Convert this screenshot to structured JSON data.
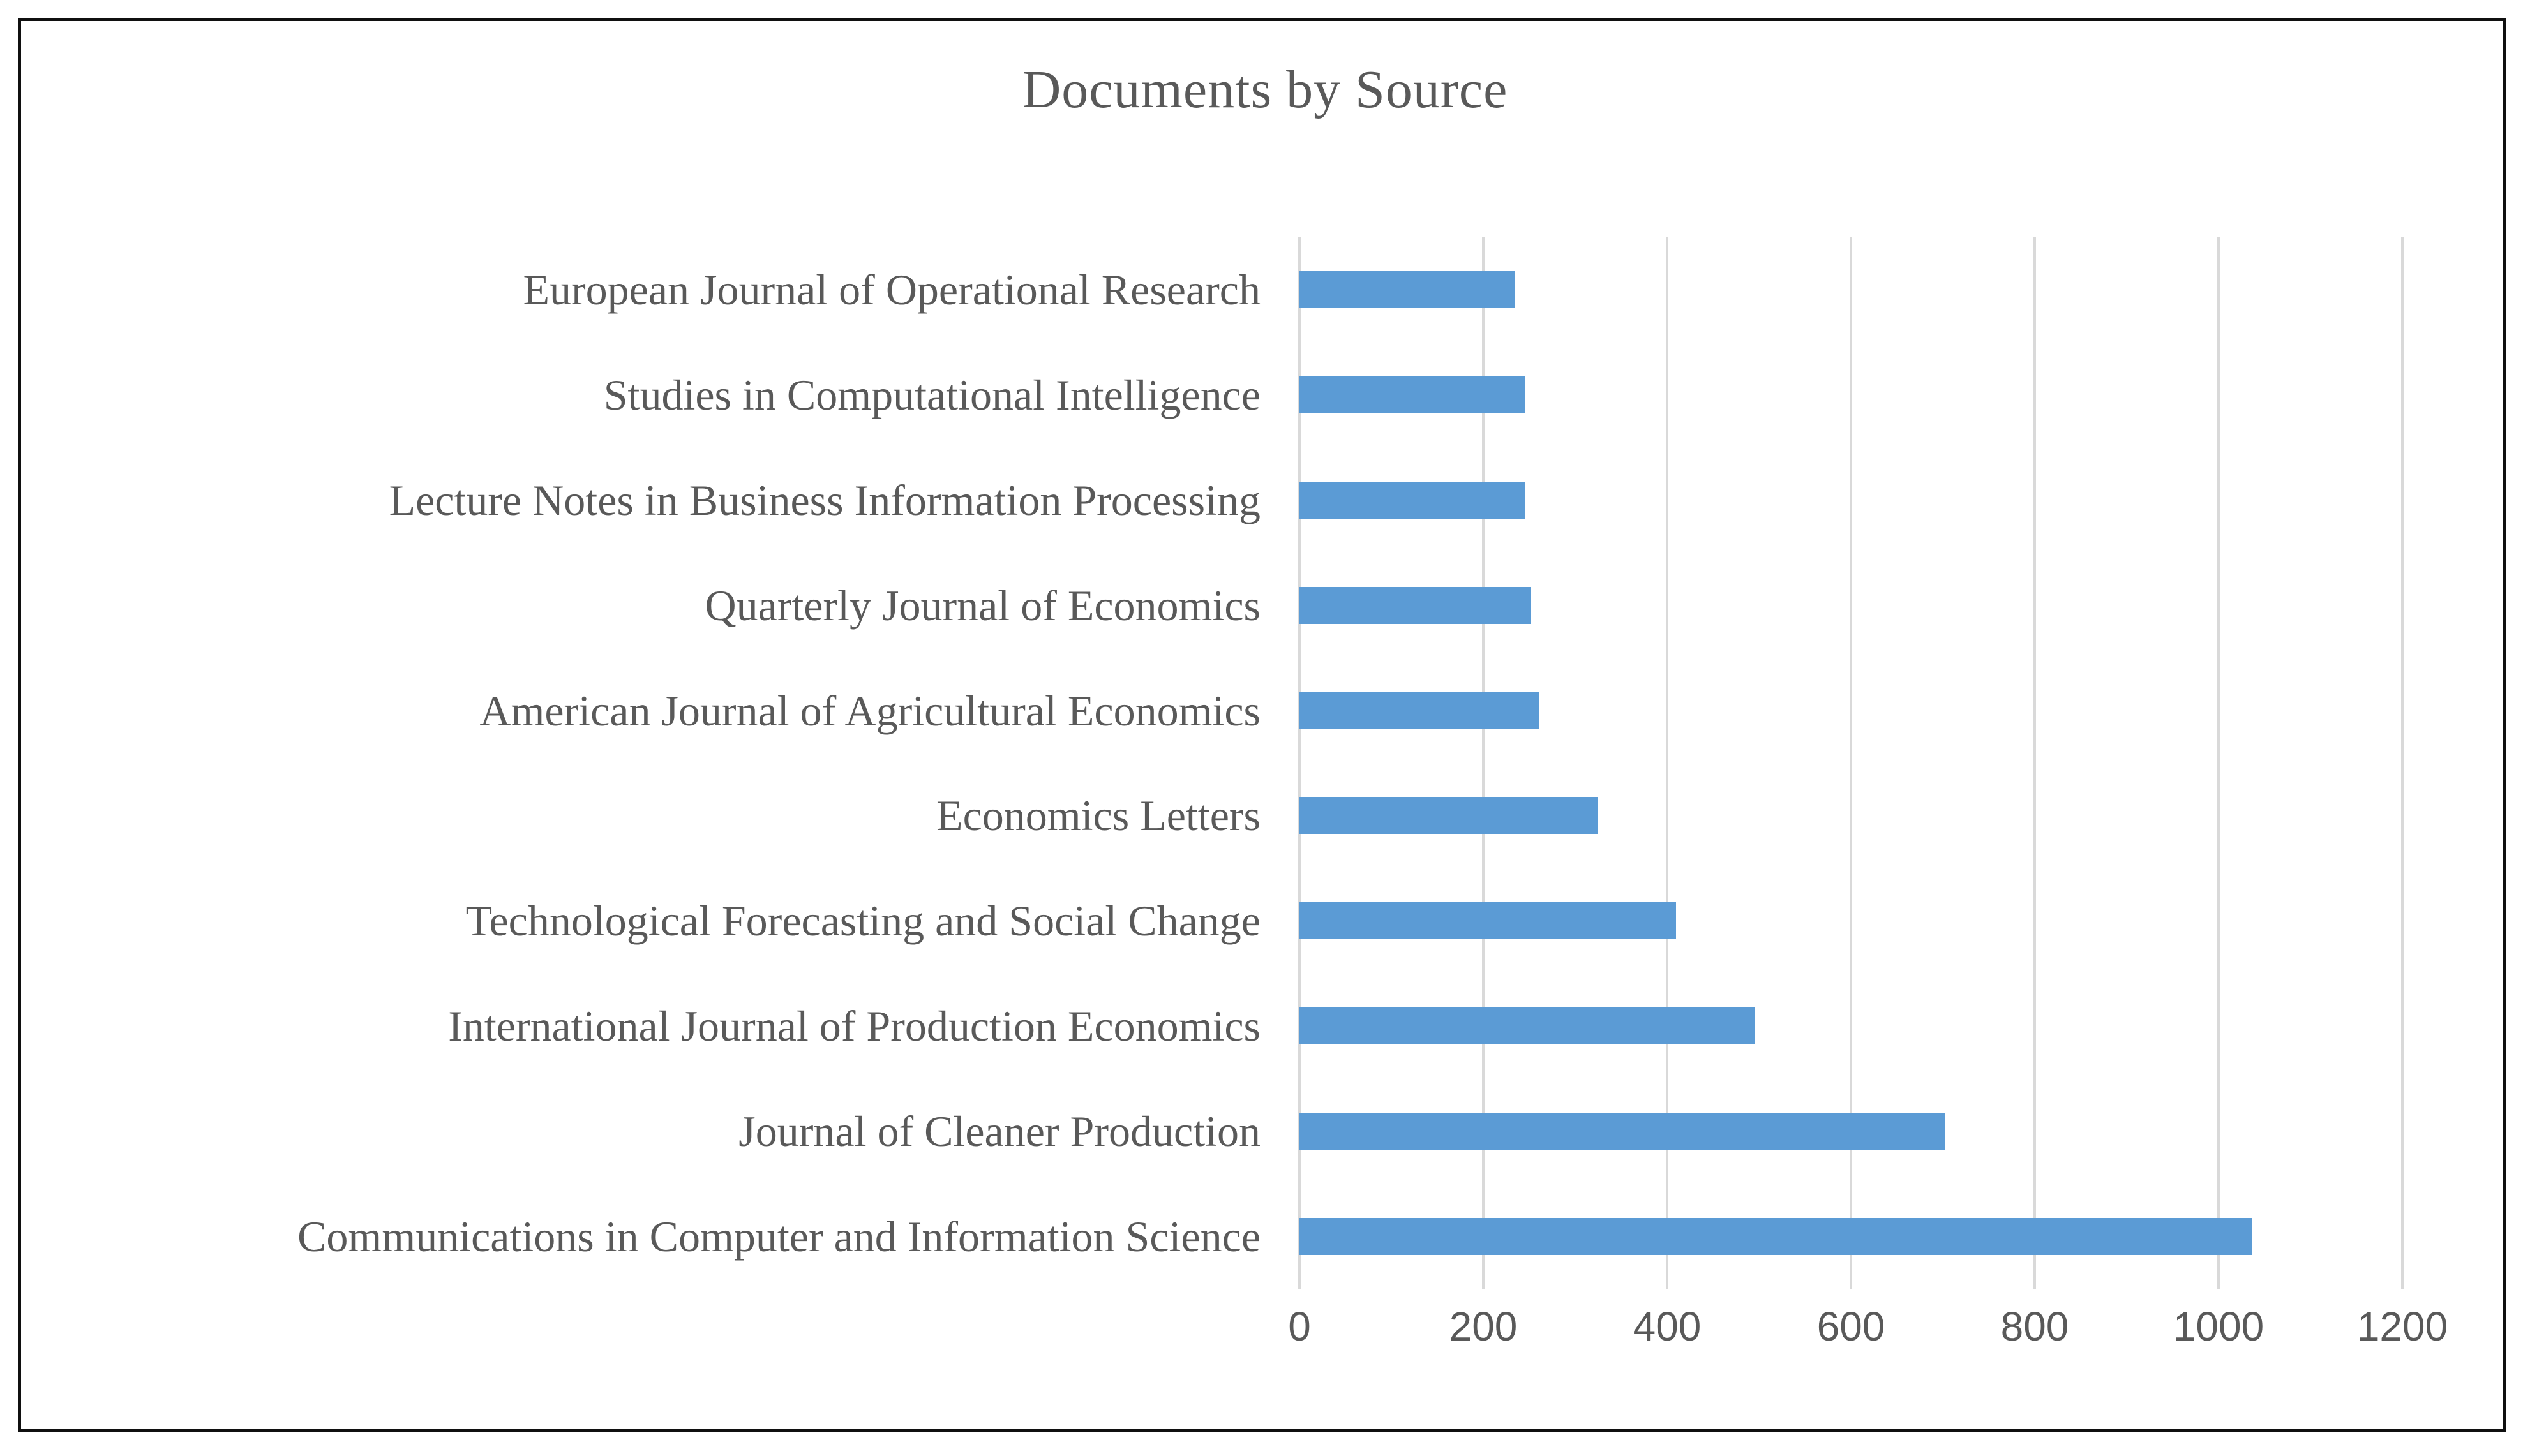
{
  "figure": {
    "title": "Documents by Source"
  },
  "colors": {
    "bar": "#5B9BD5",
    "text": "#595959",
    "gridline": "#D9D9D9",
    "frame_border": "#101010",
    "background": "#FFFFFF"
  },
  "chart_data": {
    "type": "bar",
    "orientation": "horizontal",
    "title": "Documents by Source",
    "categories": [
      "European Journal of Operational Research",
      "Studies in Computational Intelligence",
      "Lecture Notes in Business Information Processing",
      "Quarterly Journal of Economics",
      "American Journal of Agricultural Economics",
      "Economics Letters",
      "Technological Forecasting and Social Change",
      "International Journal of Production Economics",
      "Journal of Cleaner Production",
      "Communications in Computer and Information Science"
    ],
    "values": [
      234,
      245,
      246,
      252,
      261,
      324,
      410,
      496,
      702,
      1037
    ],
    "xlabel": "",
    "ylabel": "",
    "xlim": [
      0,
      1200
    ],
    "xticks": [
      0,
      200,
      400,
      600,
      800,
      1000,
      1200
    ],
    "grid": "vertical-gridlines-on",
    "legend": "none",
    "bar_color": "#5B9BD5"
  }
}
